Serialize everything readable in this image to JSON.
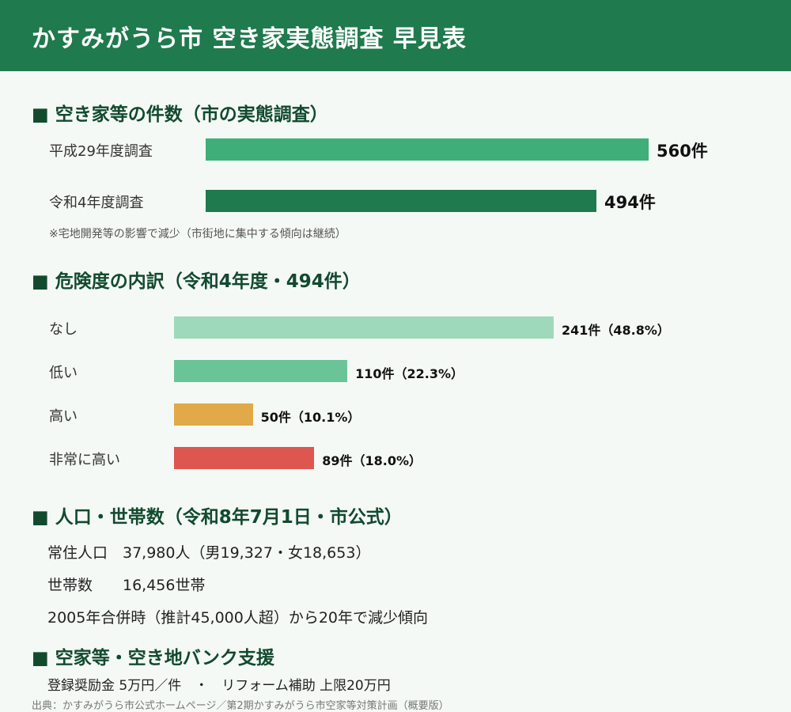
{
  "title": "かすみがうら市 空き家実態調査 早見表",
  "sections": {
    "counts": "■ 空き家等の件数（市の実態調査）",
    "risk": "■ 危険度の内訳（令和4年度・494件）",
    "population": "■ 人口・世帯数（令和8年7月1日・市公式）",
    "bank": "■ 空家等・空き地バンク支援"
  },
  "chart_data": [
    {
      "type": "bar",
      "orientation": "horizontal",
      "categories": [
        "平成29年度調査",
        "令和4年度調査"
      ],
      "values": [
        560,
        494
      ],
      "value_labels": [
        "560件",
        "494件"
      ],
      "colors": [
        "#3fae78",
        "#1f7a4d"
      ],
      "note": "※宅地開発等の影響で減少（市街地に集中する傾向は継続）"
    },
    {
      "type": "bar",
      "orientation": "horizontal",
      "categories": [
        "なし",
        "低い",
        "高い",
        "非常に高い"
      ],
      "values": [
        241,
        110,
        50,
        89
      ],
      "percentages": [
        48.8,
        22.3,
        10.1,
        18.0
      ],
      "value_labels": [
        "241件（48.8%）",
        "110件（22.3%）",
        "50件（10.1%）",
        "89件（18.0%）"
      ],
      "colors": [
        "#9fd9bb",
        "#6bc497",
        "#e2a948",
        "#dd5650"
      ]
    }
  ],
  "population": {
    "line1": "常住人口　37,980人（男19,327・女18,653）",
    "line2": "世帯数　　16,456世帯",
    "line3": "2005年合併時（推計45,000人超）から20年で減少傾向"
  },
  "bank": {
    "line1": "登録奨励金 5万円／件　・　リフォーム補助 上限20万円"
  },
  "source": "出典：かすみがうら市公式ホームページ／第2期かすみがうら市空家等対策計画（概要版）"
}
